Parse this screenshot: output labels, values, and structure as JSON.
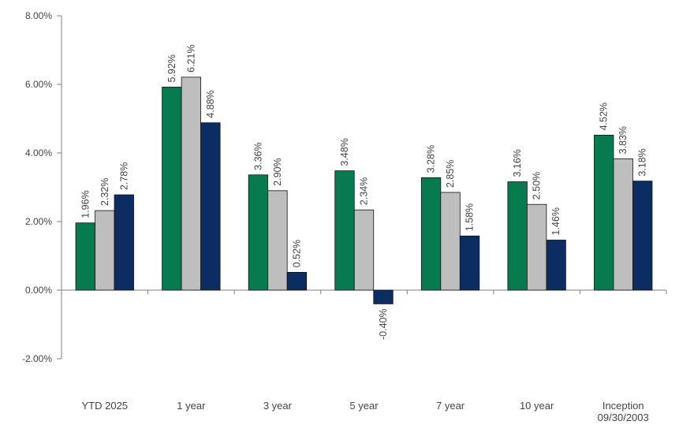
{
  "chart_data": {
    "type": "bar",
    "title": "",
    "xlabel": "",
    "ylabel": "",
    "ylim": [
      -2,
      8
    ],
    "yticks": [
      -2,
      0,
      2,
      4,
      6,
      8
    ],
    "ytick_labels": [
      "-2.00%",
      "0.00%",
      "2.00%",
      "4.00%",
      "6.00%",
      "8.00%"
    ],
    "grid": false,
    "legend": "none",
    "categories": [
      [
        "YTD 2025"
      ],
      [
        "1 year"
      ],
      [
        "3 year"
      ],
      [
        "5 year"
      ],
      [
        "7 year"
      ],
      [
        "10 year"
      ],
      [
        "Inception",
        "09/30/2003"
      ]
    ],
    "series": [
      {
        "color": "#087A4F",
        "values": [
          1.96,
          5.92,
          3.36,
          3.48,
          3.28,
          3.16,
          4.52
        ],
        "labels": [
          "1.96%",
          "5.92%",
          "3.36%",
          "3.48%",
          "3.28%",
          "3.16%",
          "4.52%"
        ]
      },
      {
        "color": "#BEBEBE",
        "values": [
          2.32,
          6.21,
          2.9,
          2.34,
          2.85,
          2.5,
          3.83
        ],
        "labels": [
          "2.32%",
          "6.21%",
          "2.90%",
          "2.34%",
          "2.85%",
          "2.50%",
          "3.83%"
        ]
      },
      {
        "color": "#0B2D62",
        "values": [
          2.78,
          4.88,
          0.52,
          -0.4,
          1.58,
          1.46,
          3.18
        ],
        "labels": [
          "2.78%",
          "4.88%",
          "0.52%",
          "-0.40%",
          "1.58%",
          "1.46%",
          "3.18%"
        ]
      }
    ]
  }
}
